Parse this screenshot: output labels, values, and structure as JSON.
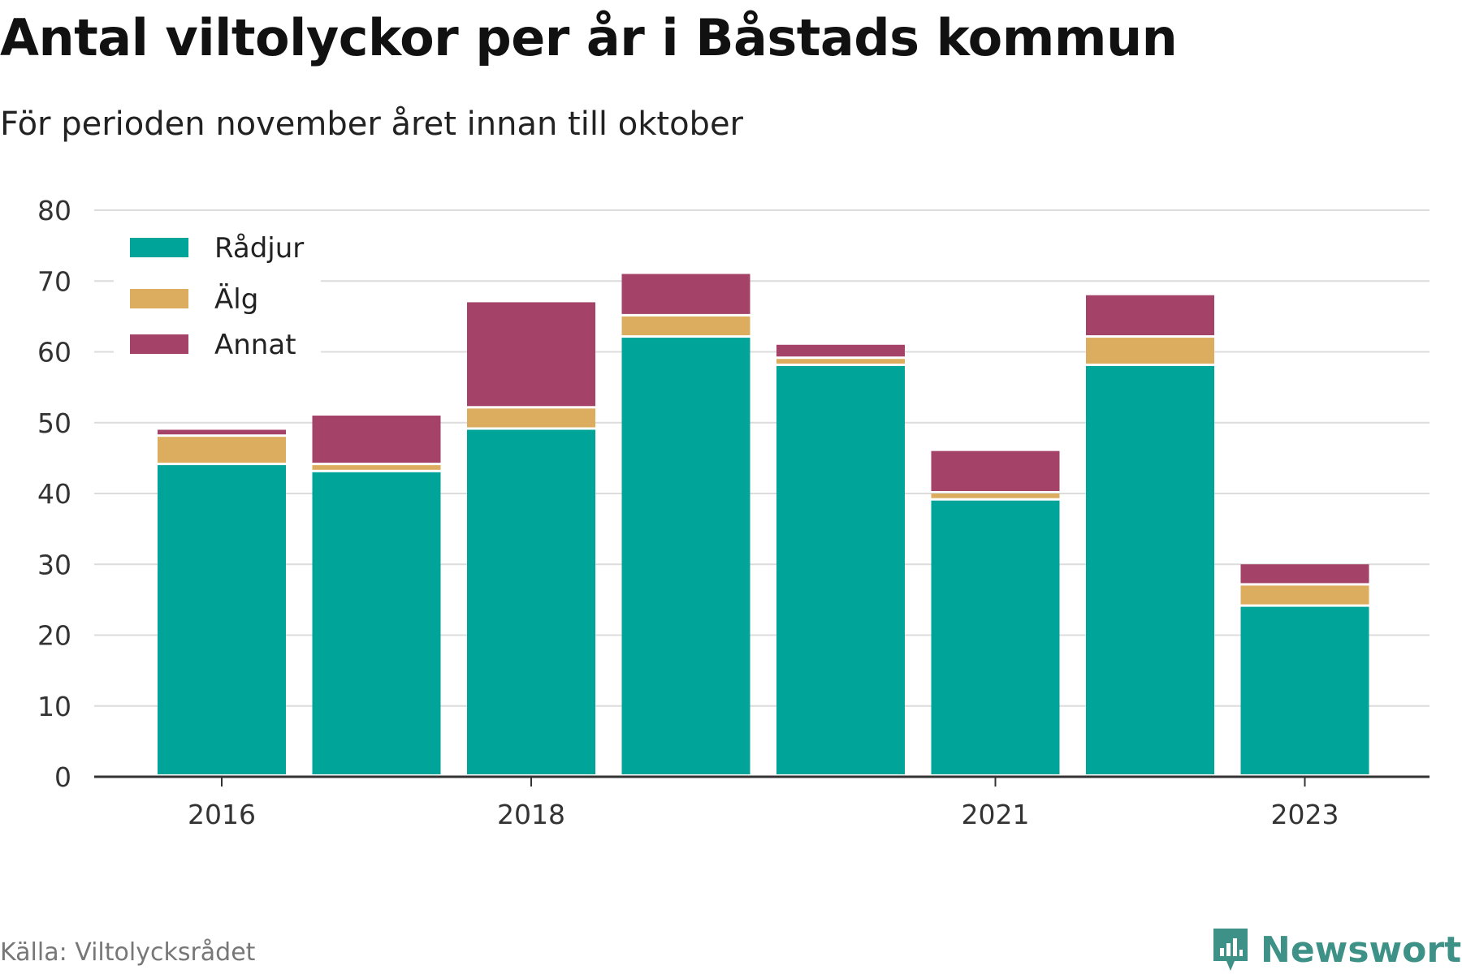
{
  "title": "Antal viltolyckor per år i Båstads kommun",
  "subtitle": "För perioden november året innan till oktober",
  "source": "Källa: Viltolycksrådet",
  "brand": "Newsworthy",
  "chart_data": {
    "type": "bar",
    "stacked": true,
    "categories": [
      "2016",
      "2017",
      "2018",
      "2019",
      "2020",
      "2021",
      "2022",
      "2023"
    ],
    "tick_labels": [
      "2016",
      "",
      "2018",
      "",
      "",
      "2021",
      "",
      "2023"
    ],
    "series": [
      {
        "name": "Rådjur",
        "color": "#00a499",
        "values": [
          44,
          43,
          49,
          62,
          58,
          39,
          58,
          24
        ]
      },
      {
        "name": "Älg",
        "color": "#dcad5e",
        "values": [
          4,
          1,
          3,
          3,
          1,
          1,
          4,
          3
        ]
      },
      {
        "name": "Annat",
        "color": "#a44268",
        "values": [
          1,
          7,
          15,
          6,
          2,
          6,
          6,
          3
        ]
      }
    ],
    "ylim": [
      0,
      80
    ],
    "yticks": [
      0,
      10,
      20,
      30,
      40,
      50,
      60,
      70,
      80
    ],
    "grid": true,
    "legend_position": "top-left"
  }
}
